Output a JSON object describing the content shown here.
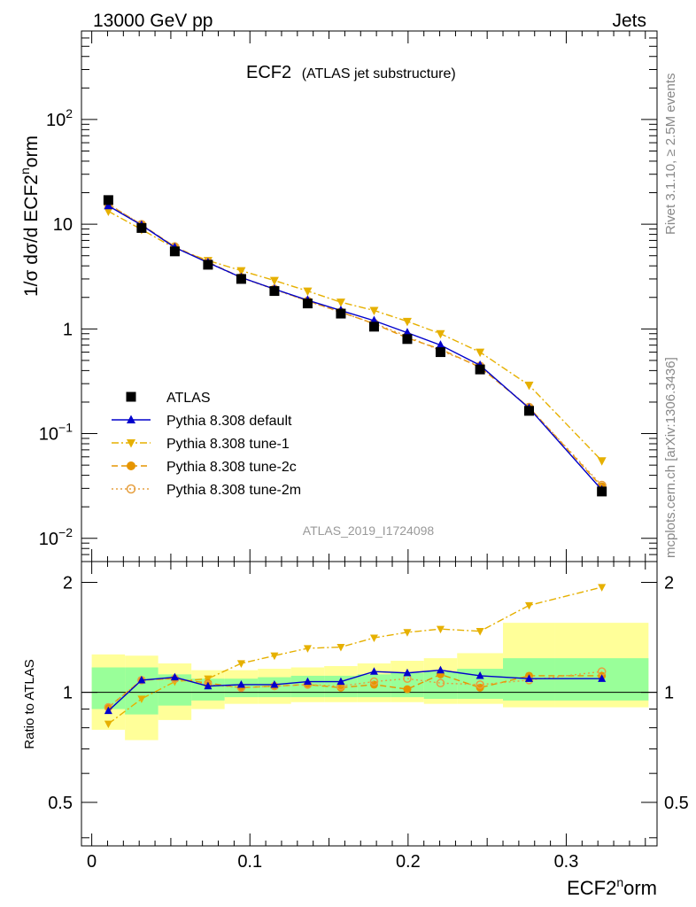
{
  "header": {
    "left": "13000 GeV pp",
    "right": "Jets"
  },
  "side_labels": {
    "rivet": "Rivet 3.1.10, ≥ 2.5M events",
    "mcplots": "mcplots.cern.ch [arXiv:1306.3436]"
  },
  "chart_data": {
    "type": "line",
    "title": "ECF2",
    "subtitle": "(ATLAS jet substructure)",
    "analysis_id": "ATLAS_2019_I1724098",
    "xlabel": "ECF2^norm",
    "ylabel": "1/σ dσ/d ECF2^norm",
    "ratio_ylabel": "Ratio to ATLAS",
    "xlim": [
      -0.0065,
      0.3574
    ],
    "ylim": [
      0.006,
      700
    ],
    "yscale": "log",
    "ratio_ylim": [
      0.38,
      2.28
    ],
    "ratio_yscale": "log",
    "x_ticks": [
      "0",
      "0.1",
      "0.2",
      "0.3"
    ],
    "x_tick_values": [
      0,
      0.1,
      0.2,
      0.3
    ],
    "y_ticks": [
      "10^-2",
      "10^-1",
      "1",
      "10",
      "10^2"
    ],
    "y_tick_values": [
      0.01,
      0.1,
      1,
      10,
      100
    ],
    "ratio_ticks": [
      "0.5",
      "1",
      "2"
    ],
    "ratio_tick_values": [
      0.5,
      1,
      2
    ],
    "legend_position": "bottom-left",
    "x": [
      0.0105,
      0.0315,
      0.0525,
      0.0735,
      0.0945,
      0.1155,
      0.1365,
      0.1575,
      0.1785,
      0.1995,
      0.2205,
      0.2455,
      0.2765,
      0.3225
    ],
    "bin_edges": [
      0,
      0.021,
      0.042,
      0.063,
      0.084,
      0.105,
      0.126,
      0.147,
      0.168,
      0.189,
      0.21,
      0.231,
      0.26,
      0.293,
      0.352
    ],
    "band_inner": [
      [
        0.9,
        1.17
      ],
      [
        0.87,
        1.17
      ],
      [
        0.92,
        1.12
      ],
      [
        0.95,
        1.09
      ],
      [
        0.97,
        1.09
      ],
      [
        0.97,
        1.1
      ],
      [
        0.97,
        1.11
      ],
      [
        0.97,
        1.11
      ],
      [
        0.97,
        1.12
      ],
      [
        0.97,
        1.13
      ],
      [
        0.96,
        1.14
      ],
      [
        0.96,
        1.16
      ],
      [
        0.95,
        1.24
      ],
      [
        0.95,
        1.24
      ]
    ],
    "band_outer": [
      [
        0.79,
        1.27
      ],
      [
        0.74,
        1.26
      ],
      [
        0.84,
        1.2
      ],
      [
        0.9,
        1.15
      ],
      [
        0.93,
        1.15
      ],
      [
        0.93,
        1.16
      ],
      [
        0.94,
        1.17
      ],
      [
        0.94,
        1.18
      ],
      [
        0.94,
        1.2
      ],
      [
        0.94,
        1.22
      ],
      [
        0.93,
        1.24
      ],
      [
        0.93,
        1.28
      ],
      [
        0.91,
        1.55
      ],
      [
        0.91,
        1.55
      ]
    ],
    "series": [
      {
        "name": "ATLAS",
        "color": "#000000",
        "marker": "square",
        "line": "none",
        "values": [
          17.0,
          9.2,
          5.5,
          4.1,
          3.0,
          2.3,
          1.75,
          1.4,
          1.05,
          0.8,
          0.6,
          0.41,
          0.165,
          0.028
        ]
      },
      {
        "name": "Pythia 8.308 default",
        "color": "#0000cc",
        "marker": "triangle-up",
        "line": "solid",
        "values": [
          15.0,
          9.8,
          6.0,
          4.3,
          3.1,
          2.4,
          1.88,
          1.5,
          1.2,
          0.92,
          0.7,
          0.45,
          0.175,
          0.029
        ],
        "ratio": [
          0.89,
          1.08,
          1.1,
          1.04,
          1.05,
          1.05,
          1.07,
          1.07,
          1.14,
          1.13,
          1.15,
          1.11,
          1.09,
          1.09
        ]
      },
      {
        "name": "Pythia 8.308 tune-1",
        "color": "#e6b000",
        "marker": "triangle-down",
        "line": "dashdot",
        "values": [
          13.3,
          8.9,
          5.9,
          4.5,
          3.6,
          2.9,
          2.3,
          1.8,
          1.5,
          1.18,
          0.9,
          0.6,
          0.29,
          0.055
        ],
        "ratio": [
          0.82,
          0.96,
          1.07,
          1.09,
          1.2,
          1.26,
          1.32,
          1.33,
          1.41,
          1.46,
          1.49,
          1.47,
          1.73,
          1.94
        ]
      },
      {
        "name": "Pythia 8.308 tune-2c",
        "color": "#e69500",
        "marker": "circle",
        "line": "dashed",
        "values": [
          15.5,
          9.9,
          6.1,
          4.35,
          3.1,
          2.4,
          1.85,
          1.45,
          1.12,
          0.82,
          0.64,
          0.43,
          0.178,
          0.031
        ],
        "ratio": [
          0.91,
          1.08,
          1.09,
          1.06,
          1.03,
          1.04,
          1.05,
          1.03,
          1.05,
          1.02,
          1.12,
          1.03,
          1.11,
          1.11
        ]
      },
      {
        "name": "Pythia 8.308 tune-2m",
        "color": "#e6a040",
        "marker": "circle-open",
        "line": "dotted",
        "values": [
          15.6,
          9.9,
          6.05,
          4.3,
          3.08,
          2.38,
          1.84,
          1.44,
          1.13,
          0.85,
          0.62,
          0.44,
          0.178,
          0.032
        ],
        "ratio": [
          0.91,
          1.08,
          1.09,
          1.05,
          1.03,
          1.04,
          1.05,
          1.04,
          1.07,
          1.09,
          1.06,
          1.05,
          1.08,
          1.14
        ]
      }
    ]
  }
}
